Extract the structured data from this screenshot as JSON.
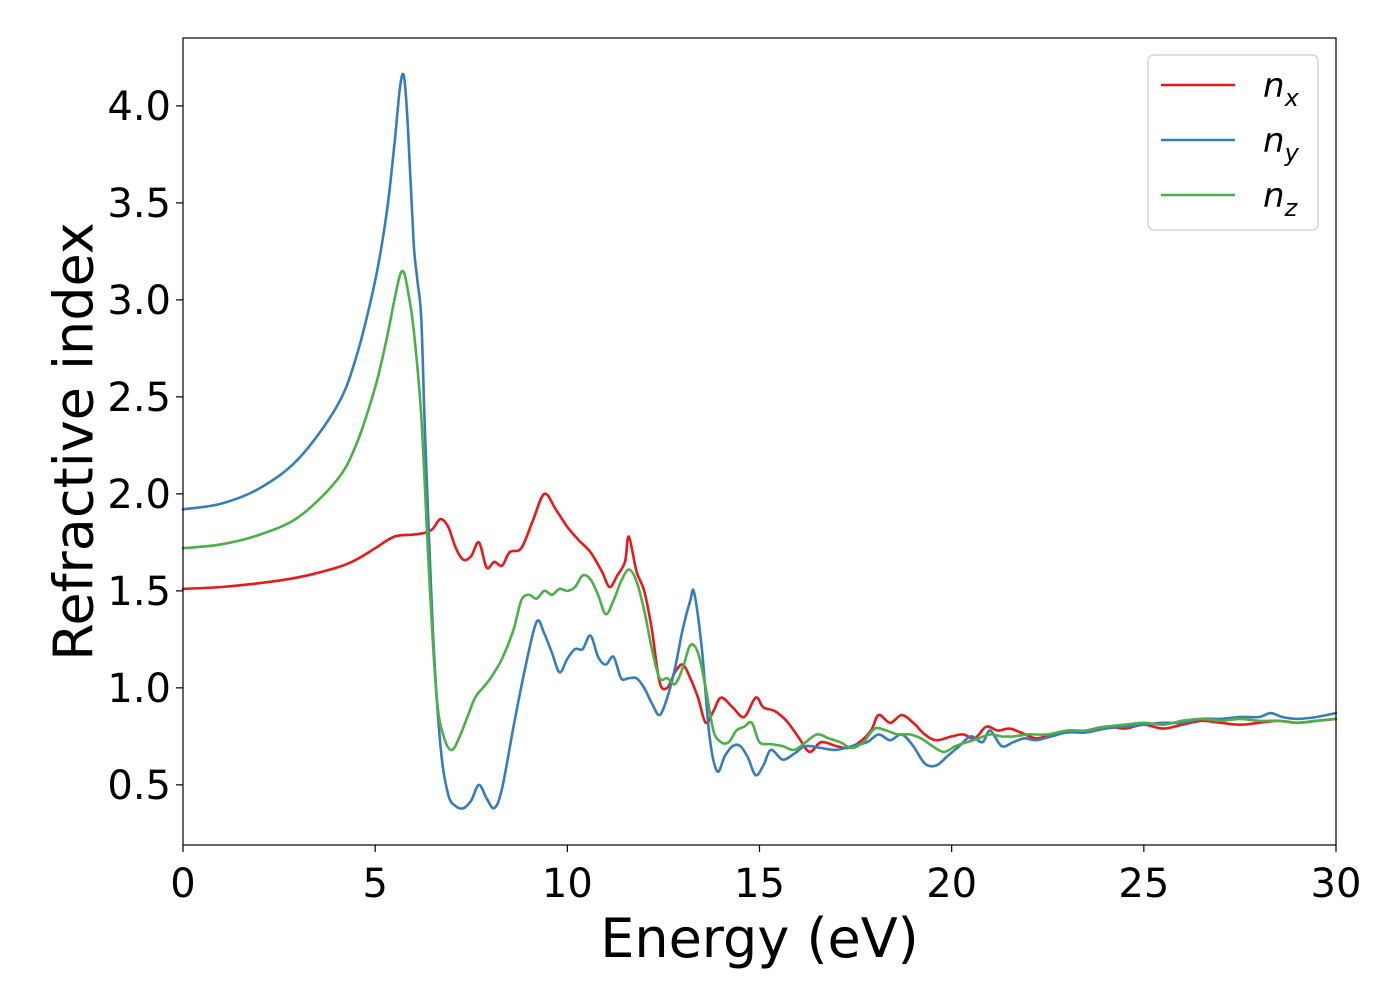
{
  "chart_data": {
    "type": "line",
    "xlabel": "Energy (eV)",
    "ylabel": "Refractive index",
    "xlim": [
      0,
      30
    ],
    "ylim": [
      0.19,
      4.35
    ],
    "xticks": [
      0,
      5,
      10,
      15,
      20,
      25,
      30
    ],
    "xtick_labels": [
      "0",
      "5",
      "10",
      "15",
      "20",
      "25",
      "30"
    ],
    "yticks": [
      0.5,
      1.0,
      1.5,
      2.0,
      2.5,
      3.0,
      3.5,
      4.0
    ],
    "ytick_labels": [
      "0.5",
      "1.0",
      "1.5",
      "2.0",
      "2.5",
      "3.0",
      "3.5",
      "4.0"
    ],
    "grid": false,
    "legend_position": "top-right",
    "series": [
      {
        "name": "n_x",
        "legend_base": "n",
        "legend_sub": "x",
        "color": "#e41a1c",
        "points": [
          [
            0,
            1.51
          ],
          [
            1,
            1.52
          ],
          [
            2,
            1.54
          ],
          [
            3,
            1.57
          ],
          [
            4,
            1.62
          ],
          [
            4.5,
            1.66
          ],
          [
            5,
            1.72
          ],
          [
            5.5,
            1.78
          ],
          [
            6,
            1.79
          ],
          [
            6.3,
            1.8
          ],
          [
            6.5,
            1.82
          ],
          [
            6.7,
            1.87
          ],
          [
            6.9,
            1.83
          ],
          [
            7.1,
            1.72
          ],
          [
            7.3,
            1.66
          ],
          [
            7.5,
            1.68
          ],
          [
            7.7,
            1.75
          ],
          [
            7.9,
            1.62
          ],
          [
            8.1,
            1.65
          ],
          [
            8.3,
            1.63
          ],
          [
            8.5,
            1.7
          ],
          [
            8.8,
            1.72
          ],
          [
            9.1,
            1.86
          ],
          [
            9.4,
            2.0
          ],
          [
            9.7,
            1.92
          ],
          [
            10.0,
            1.83
          ],
          [
            10.3,
            1.76
          ],
          [
            10.6,
            1.7
          ],
          [
            10.9,
            1.6
          ],
          [
            11.1,
            1.52
          ],
          [
            11.3,
            1.58
          ],
          [
            11.5,
            1.65
          ],
          [
            11.6,
            1.78
          ],
          [
            11.8,
            1.6
          ],
          [
            12.0,
            1.5
          ],
          [
            12.2,
            1.3
          ],
          [
            12.4,
            1.03
          ],
          [
            12.6,
            1.0
          ],
          [
            12.8,
            1.08
          ],
          [
            13.0,
            1.12
          ],
          [
            13.2,
            1.05
          ],
          [
            13.4,
            0.95
          ],
          [
            13.6,
            0.82
          ],
          [
            13.8,
            0.88
          ],
          [
            14.0,
            0.95
          ],
          [
            14.3,
            0.9
          ],
          [
            14.6,
            0.85
          ],
          [
            14.9,
            0.95
          ],
          [
            15.1,
            0.9
          ],
          [
            15.4,
            0.88
          ],
          [
            15.7,
            0.83
          ],
          [
            16.0,
            0.75
          ],
          [
            16.3,
            0.67
          ],
          [
            16.6,
            0.72
          ],
          [
            17.0,
            0.7
          ],
          [
            17.3,
            0.69
          ],
          [
            17.6,
            0.72
          ],
          [
            17.9,
            0.78
          ],
          [
            18.1,
            0.86
          ],
          [
            18.4,
            0.82
          ],
          [
            18.7,
            0.86
          ],
          [
            19.0,
            0.82
          ],
          [
            19.3,
            0.76
          ],
          [
            19.6,
            0.73
          ],
          [
            20.0,
            0.75
          ],
          [
            20.3,
            0.76
          ],
          [
            20.6,
            0.74
          ],
          [
            20.9,
            0.8
          ],
          [
            21.2,
            0.78
          ],
          [
            21.5,
            0.79
          ],
          [
            21.8,
            0.77
          ],
          [
            22.2,
            0.74
          ],
          [
            22.6,
            0.76
          ],
          [
            23,
            0.77
          ],
          [
            23.5,
            0.78
          ],
          [
            24,
            0.8
          ],
          [
            24.5,
            0.79
          ],
          [
            25,
            0.81
          ],
          [
            25.5,
            0.79
          ],
          [
            26,
            0.81
          ],
          [
            26.5,
            0.83
          ],
          [
            27,
            0.82
          ],
          [
            27.5,
            0.81
          ],
          [
            28,
            0.82
          ],
          [
            28.5,
            0.83
          ],
          [
            29,
            0.82
          ],
          [
            29.5,
            0.83
          ],
          [
            30,
            0.84
          ]
        ]
      },
      {
        "name": "n_y",
        "legend_base": "n",
        "legend_sub": "y",
        "color": "#377eb8",
        "points": [
          [
            0,
            1.92
          ],
          [
            1,
            1.95
          ],
          [
            2,
            2.03
          ],
          [
            3,
            2.18
          ],
          [
            4,
            2.45
          ],
          [
            4.5,
            2.7
          ],
          [
            5,
            3.1
          ],
          [
            5.3,
            3.45
          ],
          [
            5.5,
            3.8
          ],
          [
            5.65,
            4.1
          ],
          [
            5.75,
            4.15
          ],
          [
            5.85,
            3.9
          ],
          [
            6.0,
            3.3
          ],
          [
            6.1,
            3.1
          ],
          [
            6.2,
            2.9
          ],
          [
            6.3,
            2.3
          ],
          [
            6.5,
            1.3
          ],
          [
            6.7,
            0.7
          ],
          [
            6.9,
            0.45
          ],
          [
            7.1,
            0.39
          ],
          [
            7.3,
            0.38
          ],
          [
            7.5,
            0.42
          ],
          [
            7.7,
            0.5
          ],
          [
            7.9,
            0.43
          ],
          [
            8.1,
            0.38
          ],
          [
            8.3,
            0.48
          ],
          [
            8.6,
            0.8
          ],
          [
            8.9,
            1.1
          ],
          [
            9.2,
            1.34
          ],
          [
            9.4,
            1.28
          ],
          [
            9.6,
            1.18
          ],
          [
            9.8,
            1.08
          ],
          [
            10.0,
            1.15
          ],
          [
            10.2,
            1.2
          ],
          [
            10.4,
            1.2
          ],
          [
            10.6,
            1.27
          ],
          [
            10.8,
            1.16
          ],
          [
            11.0,
            1.12
          ],
          [
            11.2,
            1.16
          ],
          [
            11.4,
            1.05
          ],
          [
            11.6,
            1.05
          ],
          [
            11.8,
            1.05
          ],
          [
            12.0,
            1.0
          ],
          [
            12.2,
            0.92
          ],
          [
            12.4,
            0.86
          ],
          [
            12.6,
            0.95
          ],
          [
            12.8,
            1.1
          ],
          [
            13.0,
            1.3
          ],
          [
            13.2,
            1.45
          ],
          [
            13.3,
            1.49
          ],
          [
            13.5,
            1.2
          ],
          [
            13.7,
            0.75
          ],
          [
            13.9,
            0.57
          ],
          [
            14.1,
            0.65
          ],
          [
            14.3,
            0.7
          ],
          [
            14.5,
            0.7
          ],
          [
            14.7,
            0.64
          ],
          [
            14.9,
            0.55
          ],
          [
            15.1,
            0.6
          ],
          [
            15.3,
            0.68
          ],
          [
            15.6,
            0.63
          ],
          [
            15.9,
            0.66
          ],
          [
            16.2,
            0.7
          ],
          [
            16.6,
            0.69
          ],
          [
            17.0,
            0.68
          ],
          [
            17.4,
            0.7
          ],
          [
            17.8,
            0.72
          ],
          [
            18.1,
            0.76
          ],
          [
            18.4,
            0.73
          ],
          [
            18.7,
            0.76
          ],
          [
            19.0,
            0.7
          ],
          [
            19.3,
            0.61
          ],
          [
            19.6,
            0.6
          ],
          [
            19.9,
            0.65
          ],
          [
            20.2,
            0.7
          ],
          [
            20.5,
            0.75
          ],
          [
            20.8,
            0.72
          ],
          [
            21.0,
            0.78
          ],
          [
            21.3,
            0.7
          ],
          [
            21.6,
            0.72
          ],
          [
            21.9,
            0.74
          ],
          [
            22.2,
            0.73
          ],
          [
            22.6,
            0.75
          ],
          [
            23,
            0.77
          ],
          [
            23.5,
            0.77
          ],
          [
            24,
            0.79
          ],
          [
            24.5,
            0.8
          ],
          [
            25,
            0.81
          ],
          [
            25.5,
            0.82
          ],
          [
            26,
            0.82
          ],
          [
            26.5,
            0.84
          ],
          [
            27,
            0.84
          ],
          [
            27.5,
            0.85
          ],
          [
            28,
            0.85
          ],
          [
            28.3,
            0.87
          ],
          [
            28.6,
            0.85
          ],
          [
            29,
            0.84
          ],
          [
            29.5,
            0.85
          ],
          [
            30,
            0.87
          ]
        ]
      },
      {
        "name": "n_z",
        "legend_base": "n",
        "legend_sub": "z",
        "color": "#4daf4a",
        "points": [
          [
            0,
            1.72
          ],
          [
            1,
            1.74
          ],
          [
            2,
            1.79
          ],
          [
            3,
            1.88
          ],
          [
            4,
            2.07
          ],
          [
            4.5,
            2.25
          ],
          [
            5,
            2.55
          ],
          [
            5.3,
            2.8
          ],
          [
            5.5,
            3.0
          ],
          [
            5.65,
            3.13
          ],
          [
            5.75,
            3.14
          ],
          [
            5.85,
            3.05
          ],
          [
            6.0,
            2.85
          ],
          [
            6.2,
            2.4
          ],
          [
            6.4,
            1.6
          ],
          [
            6.6,
            0.95
          ],
          [
            6.8,
            0.74
          ],
          [
            7.0,
            0.68
          ],
          [
            7.2,
            0.75
          ],
          [
            7.4,
            0.85
          ],
          [
            7.6,
            0.95
          ],
          [
            7.8,
            1.0
          ],
          [
            8.0,
            1.05
          ],
          [
            8.3,
            1.15
          ],
          [
            8.6,
            1.3
          ],
          [
            8.8,
            1.45
          ],
          [
            9.0,
            1.48
          ],
          [
            9.2,
            1.46
          ],
          [
            9.4,
            1.5
          ],
          [
            9.6,
            1.48
          ],
          [
            9.8,
            1.51
          ],
          [
            10.0,
            1.5
          ],
          [
            10.2,
            1.52
          ],
          [
            10.4,
            1.58
          ],
          [
            10.6,
            1.56
          ],
          [
            10.8,
            1.48
          ],
          [
            11.0,
            1.38
          ],
          [
            11.2,
            1.45
          ],
          [
            11.4,
            1.55
          ],
          [
            11.6,
            1.61
          ],
          [
            11.8,
            1.55
          ],
          [
            12.0,
            1.4
          ],
          [
            12.2,
            1.2
          ],
          [
            12.4,
            1.05
          ],
          [
            12.6,
            1.05
          ],
          [
            12.8,
            1.02
          ],
          [
            13.0,
            1.1
          ],
          [
            13.2,
            1.22
          ],
          [
            13.4,
            1.18
          ],
          [
            13.6,
            1.0
          ],
          [
            13.8,
            0.78
          ],
          [
            14.0,
            0.72
          ],
          [
            14.2,
            0.72
          ],
          [
            14.4,
            0.78
          ],
          [
            14.6,
            0.8
          ],
          [
            14.8,
            0.82
          ],
          [
            15.0,
            0.72
          ],
          [
            15.3,
            0.71
          ],
          [
            15.6,
            0.7
          ],
          [
            15.9,
            0.68
          ],
          [
            16.2,
            0.72
          ],
          [
            16.5,
            0.76
          ],
          [
            16.8,
            0.74
          ],
          [
            17.1,
            0.72
          ],
          [
            17.4,
            0.69
          ],
          [
            17.7,
            0.72
          ],
          [
            18.0,
            0.79
          ],
          [
            18.3,
            0.78
          ],
          [
            18.6,
            0.76
          ],
          [
            18.9,
            0.76
          ],
          [
            19.2,
            0.74
          ],
          [
            19.5,
            0.7
          ],
          [
            19.8,
            0.67
          ],
          [
            20.1,
            0.7
          ],
          [
            20.4,
            0.72
          ],
          [
            20.7,
            0.74
          ],
          [
            21.0,
            0.76
          ],
          [
            21.3,
            0.75
          ],
          [
            21.6,
            0.75
          ],
          [
            22.0,
            0.76
          ],
          [
            22.5,
            0.76
          ],
          [
            23,
            0.78
          ],
          [
            23.5,
            0.78
          ],
          [
            24,
            0.8
          ],
          [
            24.5,
            0.81
          ],
          [
            25,
            0.82
          ],
          [
            25.5,
            0.81
          ],
          [
            26,
            0.83
          ],
          [
            26.5,
            0.84
          ],
          [
            27,
            0.83
          ],
          [
            27.5,
            0.84
          ],
          [
            28,
            0.83
          ],
          [
            28.5,
            0.83
          ],
          [
            29,
            0.82
          ],
          [
            29.5,
            0.83
          ],
          [
            30,
            0.84
          ]
        ]
      }
    ]
  }
}
